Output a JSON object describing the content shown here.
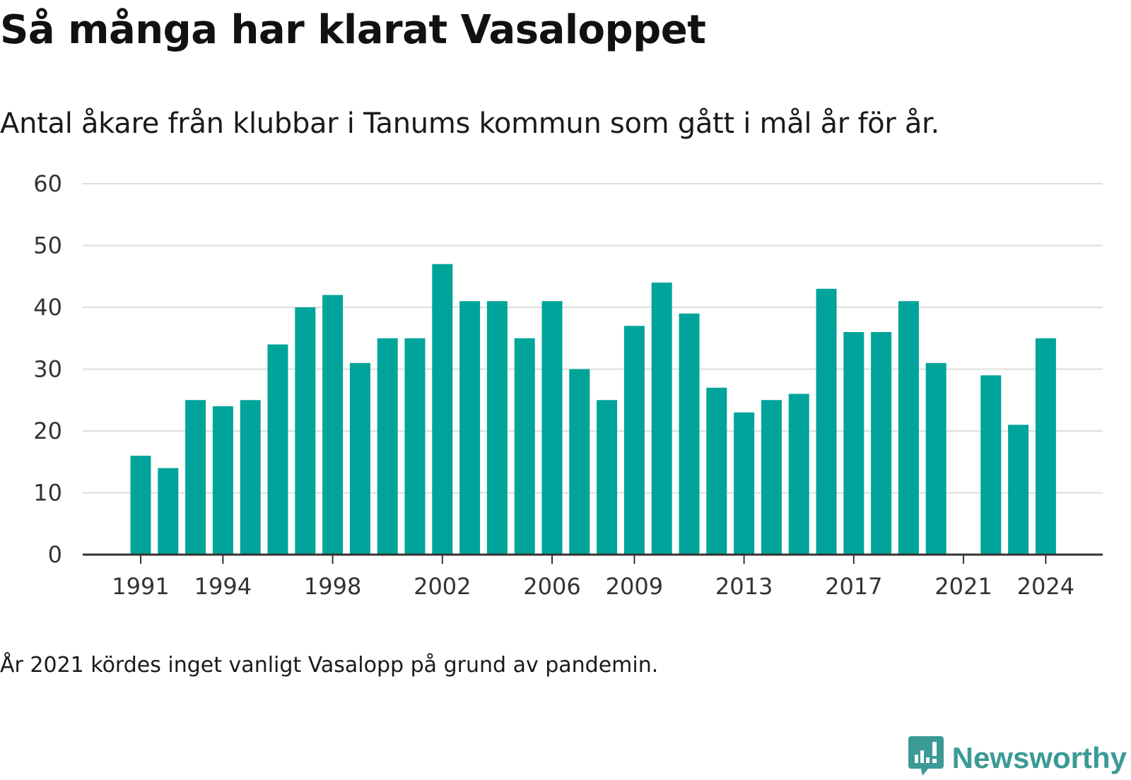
{
  "header": {
    "title": "Så många har klarat Vasaloppet",
    "subtitle": "Antal åkare från klubbar i Tanums kommun som gått i mål år för år."
  },
  "footnote": "År 2021 kördes inget vanligt Vasalopp på grund av pandemin.",
  "brand": {
    "name": "Newsworthy",
    "icon": "newsworthy-logo-icon",
    "color": "#3a9a96"
  },
  "colors": {
    "bar": "#00a49a",
    "grid": "#dddddd",
    "axis": "#333333"
  },
  "chart_data": {
    "type": "bar",
    "title": "Så många har klarat Vasaloppet",
    "subtitle": "Antal åkare från klubbar i Tanums kommun som gått i mål år för år.",
    "xlabel": "",
    "ylabel": "",
    "ylim": [
      0,
      60
    ],
    "yticks": [
      0,
      10,
      20,
      30,
      40,
      50,
      60
    ],
    "xticks": [
      1991,
      1994,
      1998,
      2002,
      2006,
      2009,
      2013,
      2017,
      2021,
      2024
    ],
    "grid": true,
    "legend": "none",
    "categories": [
      1991,
      1992,
      1993,
      1994,
      1995,
      1996,
      1997,
      1998,
      1999,
      2000,
      2001,
      2002,
      2003,
      2004,
      2005,
      2006,
      2007,
      2008,
      2009,
      2010,
      2011,
      2012,
      2013,
      2014,
      2015,
      2016,
      2017,
      2018,
      2019,
      2020,
      2021,
      2022,
      2023,
      2024
    ],
    "values": [
      16,
      14,
      25,
      24,
      25,
      34,
      40,
      42,
      31,
      35,
      35,
      47,
      41,
      41,
      35,
      41,
      30,
      25,
      37,
      44,
      39,
      27,
      23,
      25,
      26,
      43,
      36,
      36,
      41,
      31,
      null,
      29,
      21,
      35
    ]
  }
}
